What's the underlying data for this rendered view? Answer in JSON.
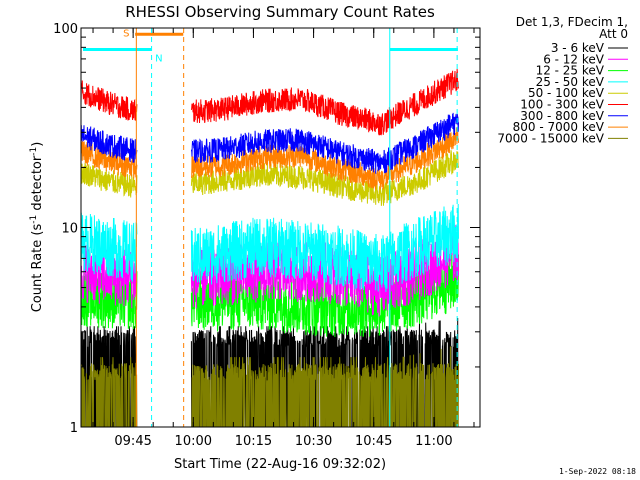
{
  "chart_data": {
    "type": "line",
    "title": "RHESSI Observing Summary Count Rates",
    "xlabel": "Start Time (22-Aug-16 09:32:02)",
    "ylabel_main": "Count Rate (s",
    "ylabel_sup": "-1",
    "ylabel_tail": " detector",
    "ylabel_end": ")",
    "yscale": "log",
    "ylim": [
      1,
      100
    ],
    "xlim_minutes": [
      0,
      99.5
    ],
    "y_ticks": [
      {
        "value": 1,
        "label": "1"
      },
      {
        "value": 10,
        "label": "10"
      },
      {
        "value": 100,
        "label": "100"
      }
    ],
    "x_ticks": [
      {
        "minute": 13,
        "label": "09:45"
      },
      {
        "minute": 28,
        "label": "10:00"
      },
      {
        "minute": 43,
        "label": "10:15"
      },
      {
        "minute": 58,
        "label": "10:30"
      },
      {
        "minute": 73,
        "label": "10:45"
      },
      {
        "minute": 88,
        "label": "11:00"
      }
    ],
    "gap_minutes": [
      14,
      27.5
    ],
    "legend_header": [
      "Det 1,3, FDecim 1,",
      "Att 0"
    ],
    "series": [
      {
        "name": "3 - 6 keV",
        "color": "#000000",
        "kind": "block",
        "lo": 1.0,
        "hi": 2.8,
        "x": [
          0,
          14,
          27.5,
          60,
          70,
          80,
          94
        ],
        "y": [
          2.0,
          2.0,
          2.0,
          2.0,
          2.0,
          2.0,
          2.2
        ]
      },
      {
        "name": "6 - 12 keV",
        "color": "#ff00ff",
        "kind": "noisy",
        "x": [
          0,
          14,
          27.5,
          45,
          60,
          75,
          84,
          94
        ],
        "y": [
          6.0,
          5.5,
          5.5,
          6.0,
          6.0,
          5.0,
          6.0,
          7.5
        ]
      },
      {
        "name": "12 - 25 keV",
        "color": "#00ff00",
        "kind": "noisy",
        "x": [
          0,
          14,
          27.5,
          45,
          60,
          75,
          84,
          94
        ],
        "y": [
          4.5,
          4.3,
          4.3,
          4.3,
          4.0,
          4.0,
          4.5,
          5.5
        ]
      },
      {
        "name": "25 - 50 keV",
        "color": "#00ffff",
        "kind": "noisy",
        "x": [
          0,
          14,
          27.5,
          45,
          60,
          75,
          84,
          94
        ],
        "y": [
          8.5,
          7.5,
          7.0,
          8.0,
          7.5,
          6.5,
          8.0,
          9.5
        ]
      },
      {
        "name": "50 - 100 keV",
        "color": "#cccc00",
        "kind": "smooth",
        "x": [
          0,
          7,
          14,
          27.5,
          35,
          45,
          55,
          65,
          75,
          84,
          94
        ],
        "y": [
          19,
          17,
          16,
          16.5,
          17,
          18.5,
          18,
          16,
          14.5,
          17,
          22
        ]
      },
      {
        "name": "100 - 300 keV",
        "color": "#ff0000",
        "kind": "smooth",
        "x": [
          0,
          7,
          14,
          27.5,
          35,
          45,
          55,
          65,
          75,
          84,
          94
        ],
        "y": [
          48,
          42,
          38,
          38,
          39,
          43,
          44,
          37,
          33,
          42,
          55
        ]
      },
      {
        "name": "300 - 800 keV",
        "color": "#0000ff",
        "kind": "smooth",
        "x": [
          0,
          7,
          14,
          27.5,
          35,
          45,
          55,
          65,
          75,
          84,
          94
        ],
        "y": [
          29,
          26,
          24,
          24,
          24.5,
          27,
          27.5,
          23.5,
          21,
          26,
          34
        ]
      },
      {
        "name": "800 - 7000 keV",
        "color": "#ff8000",
        "kind": "smooth",
        "x": [
          0,
          7,
          14,
          27.5,
          35,
          45,
          55,
          65,
          75,
          84,
          94
        ],
        "y": [
          24,
          21.5,
          20,
          20,
          20.5,
          22.5,
          23,
          19.5,
          17.5,
          21.5,
          28
        ]
      },
      {
        "name": "7000 - 15000 keV",
        "color": "#808000",
        "kind": "block",
        "lo": 1.0,
        "hi": 1.9,
        "x": [
          0,
          14,
          27.5,
          60,
          70,
          80,
          94
        ],
        "y": [
          1.4,
          1.4,
          1.4,
          1.4,
          1.4,
          1.4,
          1.6
        ]
      }
    ],
    "annotations": [
      {
        "kind": "saa_bar",
        "label": "S",
        "color": "#ff8000",
        "x_range": [
          13.5,
          25.5
        ],
        "y_value": 93
      },
      {
        "kind": "night_bar",
        "label": "N",
        "color": "#00ffff",
        "x_range_1": [
          0,
          17.5
        ],
        "x_range_2": [
          77,
          94
        ],
        "y_value": 78
      },
      {
        "kind": "vline",
        "color": "#ff8000",
        "style": "solid",
        "x": 13.8
      },
      {
        "kind": "vline",
        "color": "#ff8000",
        "style": "dashed",
        "x": 25.6
      },
      {
        "kind": "vline",
        "color": "#00ffff",
        "style": "dashed",
        "x": 17.6
      },
      {
        "kind": "vline",
        "color": "#00ffff",
        "style": "solid",
        "x": 77
      },
      {
        "kind": "vline",
        "color": "#00ffff",
        "style": "dashed",
        "x": 93.8
      }
    ]
  },
  "footer_timestamp": "1-Sep-2022 08:18"
}
